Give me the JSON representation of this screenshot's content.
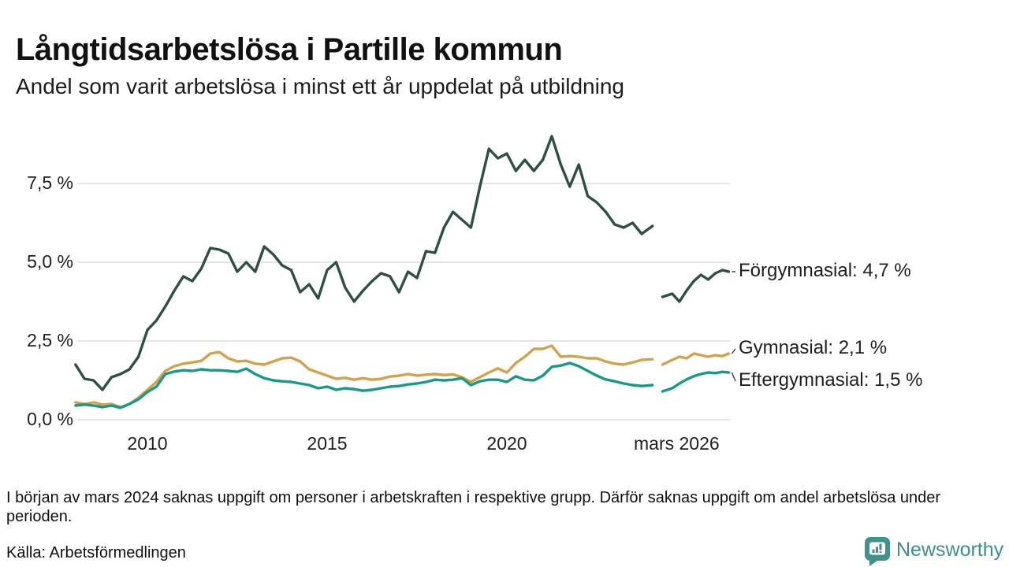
{
  "header": {
    "title": "Långtidsarbetslösa i Partille kommun",
    "subtitle": "Andel som varit arbetslösa i minst ett år uppdelat på utbildning"
  },
  "footer": {
    "note": "I början av mars 2024 saknas uppgift om personer i arbetskraften i respektive grupp. Därför saknas uppgift om andel arbetslösa under perioden.",
    "source": "Källa: Arbetsförmedlingen",
    "brand": "Newsworthy",
    "brand_color": "#3a918c"
  },
  "chart_data": {
    "type": "line",
    "title": "Långtidsarbetslösa i Partille kommun",
    "subtitle": "Andel som varit arbetslösa i minst ett år uppdelat på utbildning",
    "xlabel": "",
    "ylabel": "",
    "unit": "%",
    "xlim": [
      2008.0,
      2026.3
    ],
    "ylim": [
      0,
      9.4
    ],
    "grid": "horizontal",
    "gridline_color": "#e5e5e5",
    "data_gap": "mars 2024",
    "yticks": [
      {
        "value": 0.0,
        "label": "0,0 %"
      },
      {
        "value": 2.5,
        "label": "2,5 %"
      },
      {
        "value": 5.0,
        "label": "5,0 %"
      },
      {
        "value": 7.5,
        "label": "7,5 %"
      }
    ],
    "xticks": [
      {
        "year": 2010,
        "label": "2010"
      },
      {
        "year": 2015,
        "label": "2015"
      },
      {
        "year": 2020,
        "label": "2020"
      },
      {
        "year": 2026.17,
        "label": "mars 2026",
        "align": "right"
      }
    ],
    "series": [
      {
        "name": "Förgymnasial",
        "end_label": "Förgymnasial: 4,7 %",
        "end_value": "4,7 %",
        "color": "#2d4f46",
        "label_dy": 0,
        "segments": [
          [
            [
              2008.0,
              1.75
            ],
            [
              2008.25,
              1.3
            ],
            [
              2008.5,
              1.25
            ],
            [
              2008.75,
              0.95
            ],
            [
              2009.0,
              1.35
            ],
            [
              2009.25,
              1.45
            ],
            [
              2009.5,
              1.6
            ],
            [
              2009.75,
              2.0
            ],
            [
              2010.0,
              2.85
            ],
            [
              2010.25,
              3.15
            ],
            [
              2010.5,
              3.6
            ],
            [
              2010.75,
              4.1
            ],
            [
              2011.0,
              4.55
            ],
            [
              2011.25,
              4.4
            ],
            [
              2011.5,
              4.8
            ],
            [
              2011.75,
              5.45
            ],
            [
              2012.0,
              5.4
            ],
            [
              2012.25,
              5.28
            ],
            [
              2012.5,
              4.7
            ],
            [
              2012.75,
              5.0
            ],
            [
              2013.0,
              4.7
            ],
            [
              2013.25,
              5.5
            ],
            [
              2013.5,
              5.25
            ],
            [
              2013.75,
              4.9
            ],
            [
              2014.0,
              4.75
            ],
            [
              2014.25,
              4.05
            ],
            [
              2014.5,
              4.3
            ],
            [
              2014.75,
              3.85
            ],
            [
              2015.0,
              4.75
            ],
            [
              2015.25,
              5.0
            ],
            [
              2015.5,
              4.2
            ],
            [
              2015.75,
              3.75
            ],
            [
              2016.0,
              4.1
            ],
            [
              2016.25,
              4.4
            ],
            [
              2016.5,
              4.65
            ],
            [
              2016.75,
              4.55
            ],
            [
              2017.0,
              4.05
            ],
            [
              2017.25,
              4.7
            ],
            [
              2017.5,
              4.5
            ],
            [
              2017.75,
              5.35
            ],
            [
              2018.0,
              5.3
            ],
            [
              2018.25,
              6.1
            ],
            [
              2018.5,
              6.6
            ],
            [
              2018.75,
              6.35
            ],
            [
              2019.0,
              6.1
            ],
            [
              2019.25,
              7.4
            ],
            [
              2019.5,
              8.6
            ],
            [
              2019.75,
              8.3
            ],
            [
              2020.0,
              8.45
            ],
            [
              2020.25,
              7.9
            ],
            [
              2020.5,
              8.25
            ],
            [
              2020.75,
              7.9
            ],
            [
              2021.0,
              8.25
            ],
            [
              2021.25,
              9.0
            ],
            [
              2021.5,
              8.1
            ],
            [
              2021.75,
              7.4
            ],
            [
              2022.0,
              8.1
            ],
            [
              2022.25,
              7.1
            ],
            [
              2022.5,
              6.9
            ],
            [
              2022.75,
              6.6
            ],
            [
              2023.0,
              6.2
            ],
            [
              2023.25,
              6.1
            ],
            [
              2023.5,
              6.25
            ],
            [
              2023.75,
              5.9
            ],
            [
              2024.05,
              6.15
            ]
          ],
          [
            [
              2024.33,
              3.9
            ],
            [
              2024.6,
              4.0
            ],
            [
              2024.8,
              3.75
            ],
            [
              2025.0,
              4.1
            ],
            [
              2025.2,
              4.4
            ],
            [
              2025.4,
              4.6
            ],
            [
              2025.6,
              4.45
            ],
            [
              2025.8,
              4.65
            ],
            [
              2026.0,
              4.75
            ],
            [
              2026.17,
              4.7
            ]
          ]
        ]
      },
      {
        "name": "Gymnasial",
        "end_label": "Gymnasial: 2,1 %",
        "end_value": "2,1 %",
        "color": "#d5a24b",
        "label_dy": -6,
        "segments": [
          [
            [
              2008.0,
              0.55
            ],
            [
              2008.25,
              0.5
            ],
            [
              2008.5,
              0.55
            ],
            [
              2008.75,
              0.48
            ],
            [
              2009.0,
              0.5
            ],
            [
              2009.25,
              0.4
            ],
            [
              2009.5,
              0.5
            ],
            [
              2009.75,
              0.7
            ],
            [
              2010.0,
              0.95
            ],
            [
              2010.25,
              1.2
            ],
            [
              2010.5,
              1.55
            ],
            [
              2010.75,
              1.7
            ],
            [
              2011.0,
              1.78
            ],
            [
              2011.25,
              1.82
            ],
            [
              2011.5,
              1.87
            ],
            [
              2011.75,
              2.1
            ],
            [
              2012.0,
              2.15
            ],
            [
              2012.25,
              1.95
            ],
            [
              2012.5,
              1.85
            ],
            [
              2012.75,
              1.87
            ],
            [
              2013.0,
              1.78
            ],
            [
              2013.25,
              1.75
            ],
            [
              2013.5,
              1.85
            ],
            [
              2013.75,
              1.95
            ],
            [
              2014.0,
              1.97
            ],
            [
              2014.25,
              1.85
            ],
            [
              2014.5,
              1.6
            ],
            [
              2014.75,
              1.5
            ],
            [
              2015.0,
              1.4
            ],
            [
              2015.25,
              1.3
            ],
            [
              2015.5,
              1.33
            ],
            [
              2015.75,
              1.27
            ],
            [
              2016.0,
              1.32
            ],
            [
              2016.25,
              1.27
            ],
            [
              2016.5,
              1.3
            ],
            [
              2016.75,
              1.37
            ],
            [
              2017.0,
              1.4
            ],
            [
              2017.25,
              1.45
            ],
            [
              2017.5,
              1.4
            ],
            [
              2017.75,
              1.43
            ],
            [
              2018.0,
              1.45
            ],
            [
              2018.25,
              1.42
            ],
            [
              2018.5,
              1.44
            ],
            [
              2018.75,
              1.35
            ],
            [
              2019.0,
              1.2
            ],
            [
              2019.25,
              1.35
            ],
            [
              2019.5,
              1.5
            ],
            [
              2019.75,
              1.63
            ],
            [
              2020.0,
              1.5
            ],
            [
              2020.25,
              1.8
            ],
            [
              2020.5,
              2.0
            ],
            [
              2020.75,
              2.25
            ],
            [
              2021.0,
              2.25
            ],
            [
              2021.25,
              2.35
            ],
            [
              2021.5,
              2.0
            ],
            [
              2021.75,
              2.02
            ],
            [
              2022.0,
              2.0
            ],
            [
              2022.25,
              1.95
            ],
            [
              2022.5,
              1.95
            ],
            [
              2022.75,
              1.85
            ],
            [
              2023.0,
              1.78
            ],
            [
              2023.25,
              1.75
            ],
            [
              2023.5,
              1.82
            ],
            [
              2023.75,
              1.9
            ],
            [
              2024.05,
              1.92
            ]
          ],
          [
            [
              2024.33,
              1.75
            ],
            [
              2024.6,
              1.9
            ],
            [
              2024.8,
              2.0
            ],
            [
              2025.0,
              1.95
            ],
            [
              2025.2,
              2.1
            ],
            [
              2025.4,
              2.05
            ],
            [
              2025.6,
              2.0
            ],
            [
              2025.8,
              2.05
            ],
            [
              2026.0,
              2.02
            ],
            [
              2026.17,
              2.1
            ]
          ]
        ]
      },
      {
        "name": "Eftergymnasial",
        "end_label": "Eftergymnasial: 1,5 %",
        "end_value": "1,5 %",
        "color": "#17998b",
        "label_dy": 11,
        "segments": [
          [
            [
              2008.0,
              0.45
            ],
            [
              2008.25,
              0.48
            ],
            [
              2008.5,
              0.45
            ],
            [
              2008.75,
              0.4
            ],
            [
              2009.0,
              0.45
            ],
            [
              2009.25,
              0.38
            ],
            [
              2009.5,
              0.5
            ],
            [
              2009.75,
              0.65
            ],
            [
              2010.0,
              0.88
            ],
            [
              2010.25,
              1.05
            ],
            [
              2010.5,
              1.45
            ],
            [
              2010.75,
              1.53
            ],
            [
              2011.0,
              1.57
            ],
            [
              2011.25,
              1.55
            ],
            [
              2011.5,
              1.6
            ],
            [
              2011.75,
              1.57
            ],
            [
              2012.0,
              1.57
            ],
            [
              2012.25,
              1.55
            ],
            [
              2012.5,
              1.52
            ],
            [
              2012.75,
              1.62
            ],
            [
              2013.0,
              1.45
            ],
            [
              2013.25,
              1.32
            ],
            [
              2013.5,
              1.25
            ],
            [
              2013.75,
              1.22
            ],
            [
              2014.0,
              1.2
            ],
            [
              2014.25,
              1.15
            ],
            [
              2014.5,
              1.1
            ],
            [
              2014.75,
              1.0
            ],
            [
              2015.0,
              1.05
            ],
            [
              2015.25,
              0.95
            ],
            [
              2015.5,
              1.0
            ],
            [
              2015.75,
              0.97
            ],
            [
              2016.0,
              0.92
            ],
            [
              2016.25,
              0.95
            ],
            [
              2016.5,
              1.0
            ],
            [
              2016.75,
              1.05
            ],
            [
              2017.0,
              1.07
            ],
            [
              2017.25,
              1.12
            ],
            [
              2017.5,
              1.15
            ],
            [
              2017.75,
              1.2
            ],
            [
              2018.0,
              1.27
            ],
            [
              2018.25,
              1.25
            ],
            [
              2018.5,
              1.27
            ],
            [
              2018.75,
              1.32
            ],
            [
              2019.0,
              1.1
            ],
            [
              2019.25,
              1.22
            ],
            [
              2019.5,
              1.27
            ],
            [
              2019.75,
              1.27
            ],
            [
              2020.0,
              1.2
            ],
            [
              2020.25,
              1.38
            ],
            [
              2020.5,
              1.27
            ],
            [
              2020.75,
              1.25
            ],
            [
              2021.0,
              1.4
            ],
            [
              2021.25,
              1.68
            ],
            [
              2021.5,
              1.72
            ],
            [
              2021.75,
              1.8
            ],
            [
              2022.0,
              1.7
            ],
            [
              2022.25,
              1.55
            ],
            [
              2022.5,
              1.4
            ],
            [
              2022.75,
              1.28
            ],
            [
              2023.0,
              1.22
            ],
            [
              2023.25,
              1.15
            ],
            [
              2023.5,
              1.1
            ],
            [
              2023.75,
              1.07
            ],
            [
              2024.05,
              1.1
            ]
          ],
          [
            [
              2024.33,
              0.9
            ],
            [
              2024.6,
              1.0
            ],
            [
              2024.8,
              1.15
            ],
            [
              2025.0,
              1.28
            ],
            [
              2025.2,
              1.38
            ],
            [
              2025.4,
              1.45
            ],
            [
              2025.6,
              1.5
            ],
            [
              2025.8,
              1.48
            ],
            [
              2026.0,
              1.52
            ],
            [
              2026.17,
              1.5
            ]
          ]
        ]
      }
    ]
  }
}
